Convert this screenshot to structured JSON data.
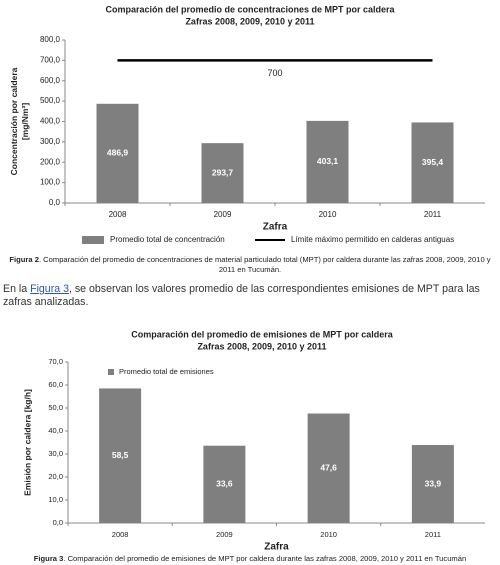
{
  "chart_data": [
    {
      "type": "bar",
      "title": "Comparación del promedio de concentraciones de MPT por  caldera",
      "subtitle": "Zafras 2008, 2009, 2010 y 2011",
      "ylabel": [
        "Concentración por caldera",
        "[mg/Nm³]"
      ],
      "xlabel": "Zafra",
      "categories": [
        "2008",
        "2009",
        "2010",
        "2011"
      ],
      "series": [
        {
          "name": "Promedio total de concentración",
          "color": "#7f7f7f",
          "values": [
            486.9,
            293.7,
            403.1,
            395.4
          ],
          "value_labels": [
            "486,9",
            "293,7",
            "403,1",
            "395,4"
          ]
        }
      ],
      "reference_line": {
        "name": "Límite máximo permitido en calderas antiguas",
        "value": 700,
        "color": "#000000"
      },
      "ylim": [
        0,
        800
      ],
      "yticks": [
        {
          "value": 0,
          "label": "0,0"
        },
        {
          "value": 100,
          "label": "100,0"
        },
        {
          "value": 200,
          "label": "200,0"
        },
        {
          "value": 300,
          "label": "300,0"
        },
        {
          "value": 400,
          "label": "400,0"
        },
        {
          "value": 500,
          "label": "500,0"
        },
        {
          "value": 600,
          "label": "600,0"
        },
        {
          "value": 700,
          "label": "700,0"
        },
        {
          "value": 800,
          "label": "800,0"
        }
      ],
      "grid": false,
      "legend": "bottom"
    },
    {
      "type": "bar",
      "title": "Comparación del promedio de emisiones de MPT por caldera",
      "subtitle": "Zafras 2008, 2009, 2010 y 2011",
      "ylabel": [
        "Emisión por caldera [kg/h]"
      ],
      "xlabel": "Zafra",
      "categories": [
        "2008",
        "2009",
        "2010",
        "2011"
      ],
      "series": [
        {
          "name": "Promedio total de emisiones",
          "color": "#7f7f7f",
          "values": [
            58.5,
            33.6,
            47.6,
            33.9
          ],
          "value_labels": [
            "58,5",
            "33,6",
            "47,6",
            "33,9"
          ]
        }
      ],
      "ylim": [
        0,
        70
      ],
      "yticks": [
        {
          "value": 0,
          "label": "0,0"
        },
        {
          "value": 10,
          "label": "10,0"
        },
        {
          "value": 20,
          "label": "20,0"
        },
        {
          "value": 30,
          "label": "30,0"
        },
        {
          "value": 40,
          "label": "40,0"
        },
        {
          "value": 50,
          "label": "50,0"
        },
        {
          "value": 60,
          "label": "60,0"
        },
        {
          "value": 70,
          "label": "70,0"
        }
      ],
      "grid": false,
      "legend": "top-left"
    }
  ],
  "captions": [
    {
      "label": "Figura 2",
      "text": ". Comparación del promedio de concentraciones de material particulado total (MPT) por caldera durante las zafras 2008, 2009, 2010 y 2011 en Tucumán."
    },
    {
      "label": "Figura 3",
      "text": ". Comparación del promedio de emisiones de MPT por caldera durante las zafras 2008, 2009, 2010 y 2011 en Tucumán"
    }
  ],
  "paragraph": {
    "before": "En la ",
    "link": "Figura 3",
    "after": ", se observan los valores promedio de las correspondientes emisiones de MPT para las zafras analizadas."
  }
}
